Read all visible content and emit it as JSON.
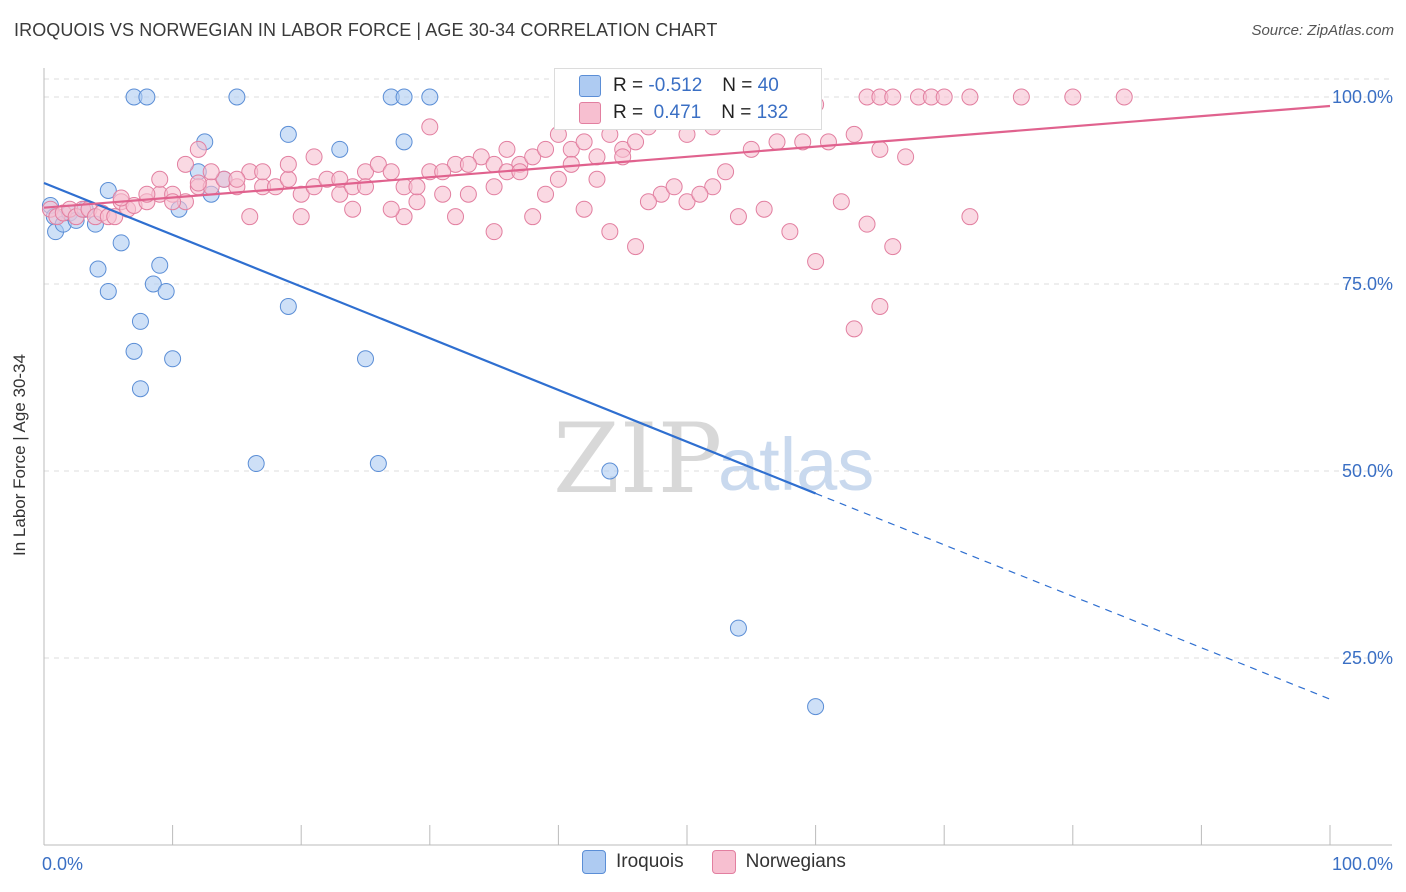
{
  "header": {
    "title": "IROQUOIS VS NORWEGIAN IN LABOR FORCE | AGE 30-34 CORRELATION CHART",
    "source": "Source: ZipAtlas.com"
  },
  "watermark": {
    "zip": "ZIP",
    "atlas": "atlas"
  },
  "legend": {
    "iroquois": {
      "r_label": "R =",
      "r_value": "-0.512",
      "n_label": "N =",
      "n_value": "40"
    },
    "norwegians": {
      "r_label": "R =",
      "r_value": "0.471",
      "n_label": "N =",
      "n_value": "132"
    }
  },
  "colors": {
    "iroquois_fill": "#aecbf2",
    "iroquois_stroke": "#5b8ed6",
    "iroquois_line": "#2f6fd0",
    "norwegians_fill": "#f7bfd0",
    "norwegians_stroke": "#e27fa0",
    "norwegians_line": "#e0628e",
    "tick_text": "#3a6fc4",
    "grid": "#dddddd"
  },
  "chart_data": {
    "type": "scatter",
    "title": "IROQUOIS VS NORWEGIAN IN LABOR FORCE | AGE 30-34 CORRELATION CHART",
    "xlabel": "",
    "ylabel": "In Labor Force | Age 30-34",
    "xlim": [
      0,
      100
    ],
    "ylim": [
      0,
      103
    ],
    "x_tick_labels": [
      {
        "value": 0,
        "label": "0.0%"
      },
      {
        "value": 100,
        "label": "100.0%"
      }
    ],
    "y_tick_labels": [
      {
        "value": 25,
        "label": "25.0%"
      },
      {
        "value": 50,
        "label": "50.0%"
      },
      {
        "value": 75,
        "label": "75.0%"
      },
      {
        "value": 100,
        "label": "100.0%"
      }
    ],
    "legend_position": "bottom",
    "series": [
      {
        "name": "Iroquois",
        "points": [
          [
            0.5,
            85.5
          ],
          [
            0.8,
            84
          ],
          [
            0.9,
            82
          ],
          [
            1.5,
            83
          ],
          [
            2,
            84.5
          ],
          [
            2.5,
            83.5
          ],
          [
            3.2,
            85
          ],
          [
            4,
            83
          ],
          [
            5,
            87.5
          ],
          [
            4.2,
            77
          ],
          [
            5,
            74
          ],
          [
            6,
            80.5
          ],
          [
            7,
            66
          ],
          [
            7.5,
            61
          ],
          [
            7.5,
            70
          ],
          [
            8.5,
            75
          ],
          [
            9,
            77.5
          ],
          [
            9.5,
            74
          ],
          [
            10,
            65
          ],
          [
            10.5,
            85
          ],
          [
            12,
            90
          ],
          [
            12.5,
            94
          ],
          [
            13,
            87
          ],
          [
            14,
            89
          ],
          [
            7,
            100
          ],
          [
            8,
            100
          ],
          [
            15,
            100
          ],
          [
            19,
            95
          ],
          [
            19,
            72
          ],
          [
            23,
            93
          ],
          [
            25,
            65
          ],
          [
            27,
            100
          ],
          [
            28,
            94
          ],
          [
            28,
            100
          ],
          [
            30,
            100
          ],
          [
            16.5,
            51
          ],
          [
            26,
            51
          ],
          [
            44,
            50
          ],
          [
            54,
            29
          ],
          [
            60,
            18.5
          ]
        ]
      },
      {
        "name": "Norwegians",
        "points": [
          [
            0.5,
            85
          ],
          [
            1,
            84
          ],
          [
            1.5,
            84.5
          ],
          [
            2,
            85
          ],
          [
            2.5,
            84
          ],
          [
            3,
            85
          ],
          [
            3.5,
            85
          ],
          [
            4,
            84
          ],
          [
            4.5,
            84.5
          ],
          [
            5,
            84
          ],
          [
            5.5,
            84
          ],
          [
            6,
            86
          ],
          [
            6.5,
            85
          ],
          [
            7,
            85.5
          ],
          [
            8,
            86
          ],
          [
            9,
            87
          ],
          [
            10,
            87
          ],
          [
            11,
            86
          ],
          [
            12,
            88
          ],
          [
            13,
            88
          ],
          [
            14,
            89
          ],
          [
            15,
            88
          ],
          [
            16,
            90
          ],
          [
            17,
            88
          ],
          [
            18,
            88
          ],
          [
            19,
            89
          ],
          [
            20,
            87
          ],
          [
            21,
            88
          ],
          [
            22,
            89
          ],
          [
            23,
            87
          ],
          [
            24,
            88
          ],
          [
            25,
            90
          ],
          [
            26,
            91
          ],
          [
            27,
            90
          ],
          [
            28,
            88
          ],
          [
            29,
            86
          ],
          [
            30,
            90
          ],
          [
            31,
            87
          ],
          [
            32,
            91
          ],
          [
            33,
            87
          ],
          [
            34,
            92
          ],
          [
            35,
            91
          ],
          [
            36,
            93
          ],
          [
            37,
            91
          ],
          [
            38,
            92
          ],
          [
            39,
            93
          ],
          [
            40,
            95
          ],
          [
            41,
            93
          ],
          [
            42,
            94
          ],
          [
            43,
            92
          ],
          [
            44,
            95
          ],
          [
            45,
            93
          ],
          [
            46,
            94
          ],
          [
            47,
            96
          ],
          [
            48,
            98
          ],
          [
            49,
            97
          ],
          [
            50,
            95
          ],
          [
            52,
            96
          ],
          [
            53,
            97
          ],
          [
            55,
            100
          ],
          [
            57,
            100
          ],
          [
            60,
            99
          ],
          [
            64,
            100
          ],
          [
            65,
            100
          ],
          [
            66,
            100
          ],
          [
            68,
            100
          ],
          [
            69,
            100
          ],
          [
            70,
            100
          ],
          [
            72,
            100
          ],
          [
            76,
            100
          ],
          [
            80,
            100
          ],
          [
            84,
            100
          ],
          [
            12,
            93
          ],
          [
            16,
            84
          ],
          [
            20,
            84
          ],
          [
            24,
            85
          ],
          [
            28,
            84
          ],
          [
            30,
            96
          ],
          [
            32,
            84
          ],
          [
            35,
            82
          ],
          [
            36,
            90
          ],
          [
            38,
            84
          ],
          [
            40,
            89
          ],
          [
            42,
            85
          ],
          [
            44,
            82
          ],
          [
            46,
            80
          ],
          [
            48,
            87
          ],
          [
            50,
            86
          ],
          [
            52,
            88
          ],
          [
            54,
            84
          ],
          [
            56,
            85
          ],
          [
            58,
            82
          ],
          [
            60,
            78
          ],
          [
            62,
            86
          ],
          [
            64,
            83
          ],
          [
            66,
            80
          ],
          [
            9,
            89
          ],
          [
            11,
            91
          ],
          [
            13,
            90
          ],
          [
            15,
            89
          ],
          [
            17,
            90
          ],
          [
            19,
            91
          ],
          [
            21,
            92
          ],
          [
            23,
            89
          ],
          [
            25,
            88
          ],
          [
            27,
            85
          ],
          [
            29,
            88
          ],
          [
            31,
            90
          ],
          [
            33,
            91
          ],
          [
            35,
            88
          ],
          [
            37,
            90
          ],
          [
            39,
            87
          ],
          [
            41,
            91
          ],
          [
            43,
            89
          ],
          [
            45,
            92
          ],
          [
            47,
            86
          ],
          [
            49,
            88
          ],
          [
            51,
            87
          ],
          [
            53,
            90
          ],
          [
            55,
            93
          ],
          [
            57,
            94
          ],
          [
            59,
            94
          ],
          [
            61,
            94
          ],
          [
            63,
            95
          ],
          [
            65,
            93
          ],
          [
            67,
            92
          ],
          [
            72,
            84
          ],
          [
            63,
            69
          ],
          [
            65,
            72
          ],
          [
            6,
            86.5
          ],
          [
            8,
            87
          ],
          [
            10,
            86
          ],
          [
            12,
            88.5
          ]
        ]
      }
    ],
    "trendlines": [
      {
        "series": "Iroquois",
        "from": [
          0,
          88.5
        ],
        "to": [
          60,
          47
        ],
        "dashed_to": [
          100,
          19.5
        ]
      },
      {
        "series": "Norwegians",
        "from": [
          0,
          85.2
        ],
        "to": [
          100,
          98.8
        ]
      }
    ]
  },
  "bottom_legend": {
    "items": [
      "Iroquois",
      "Norwegians"
    ]
  }
}
